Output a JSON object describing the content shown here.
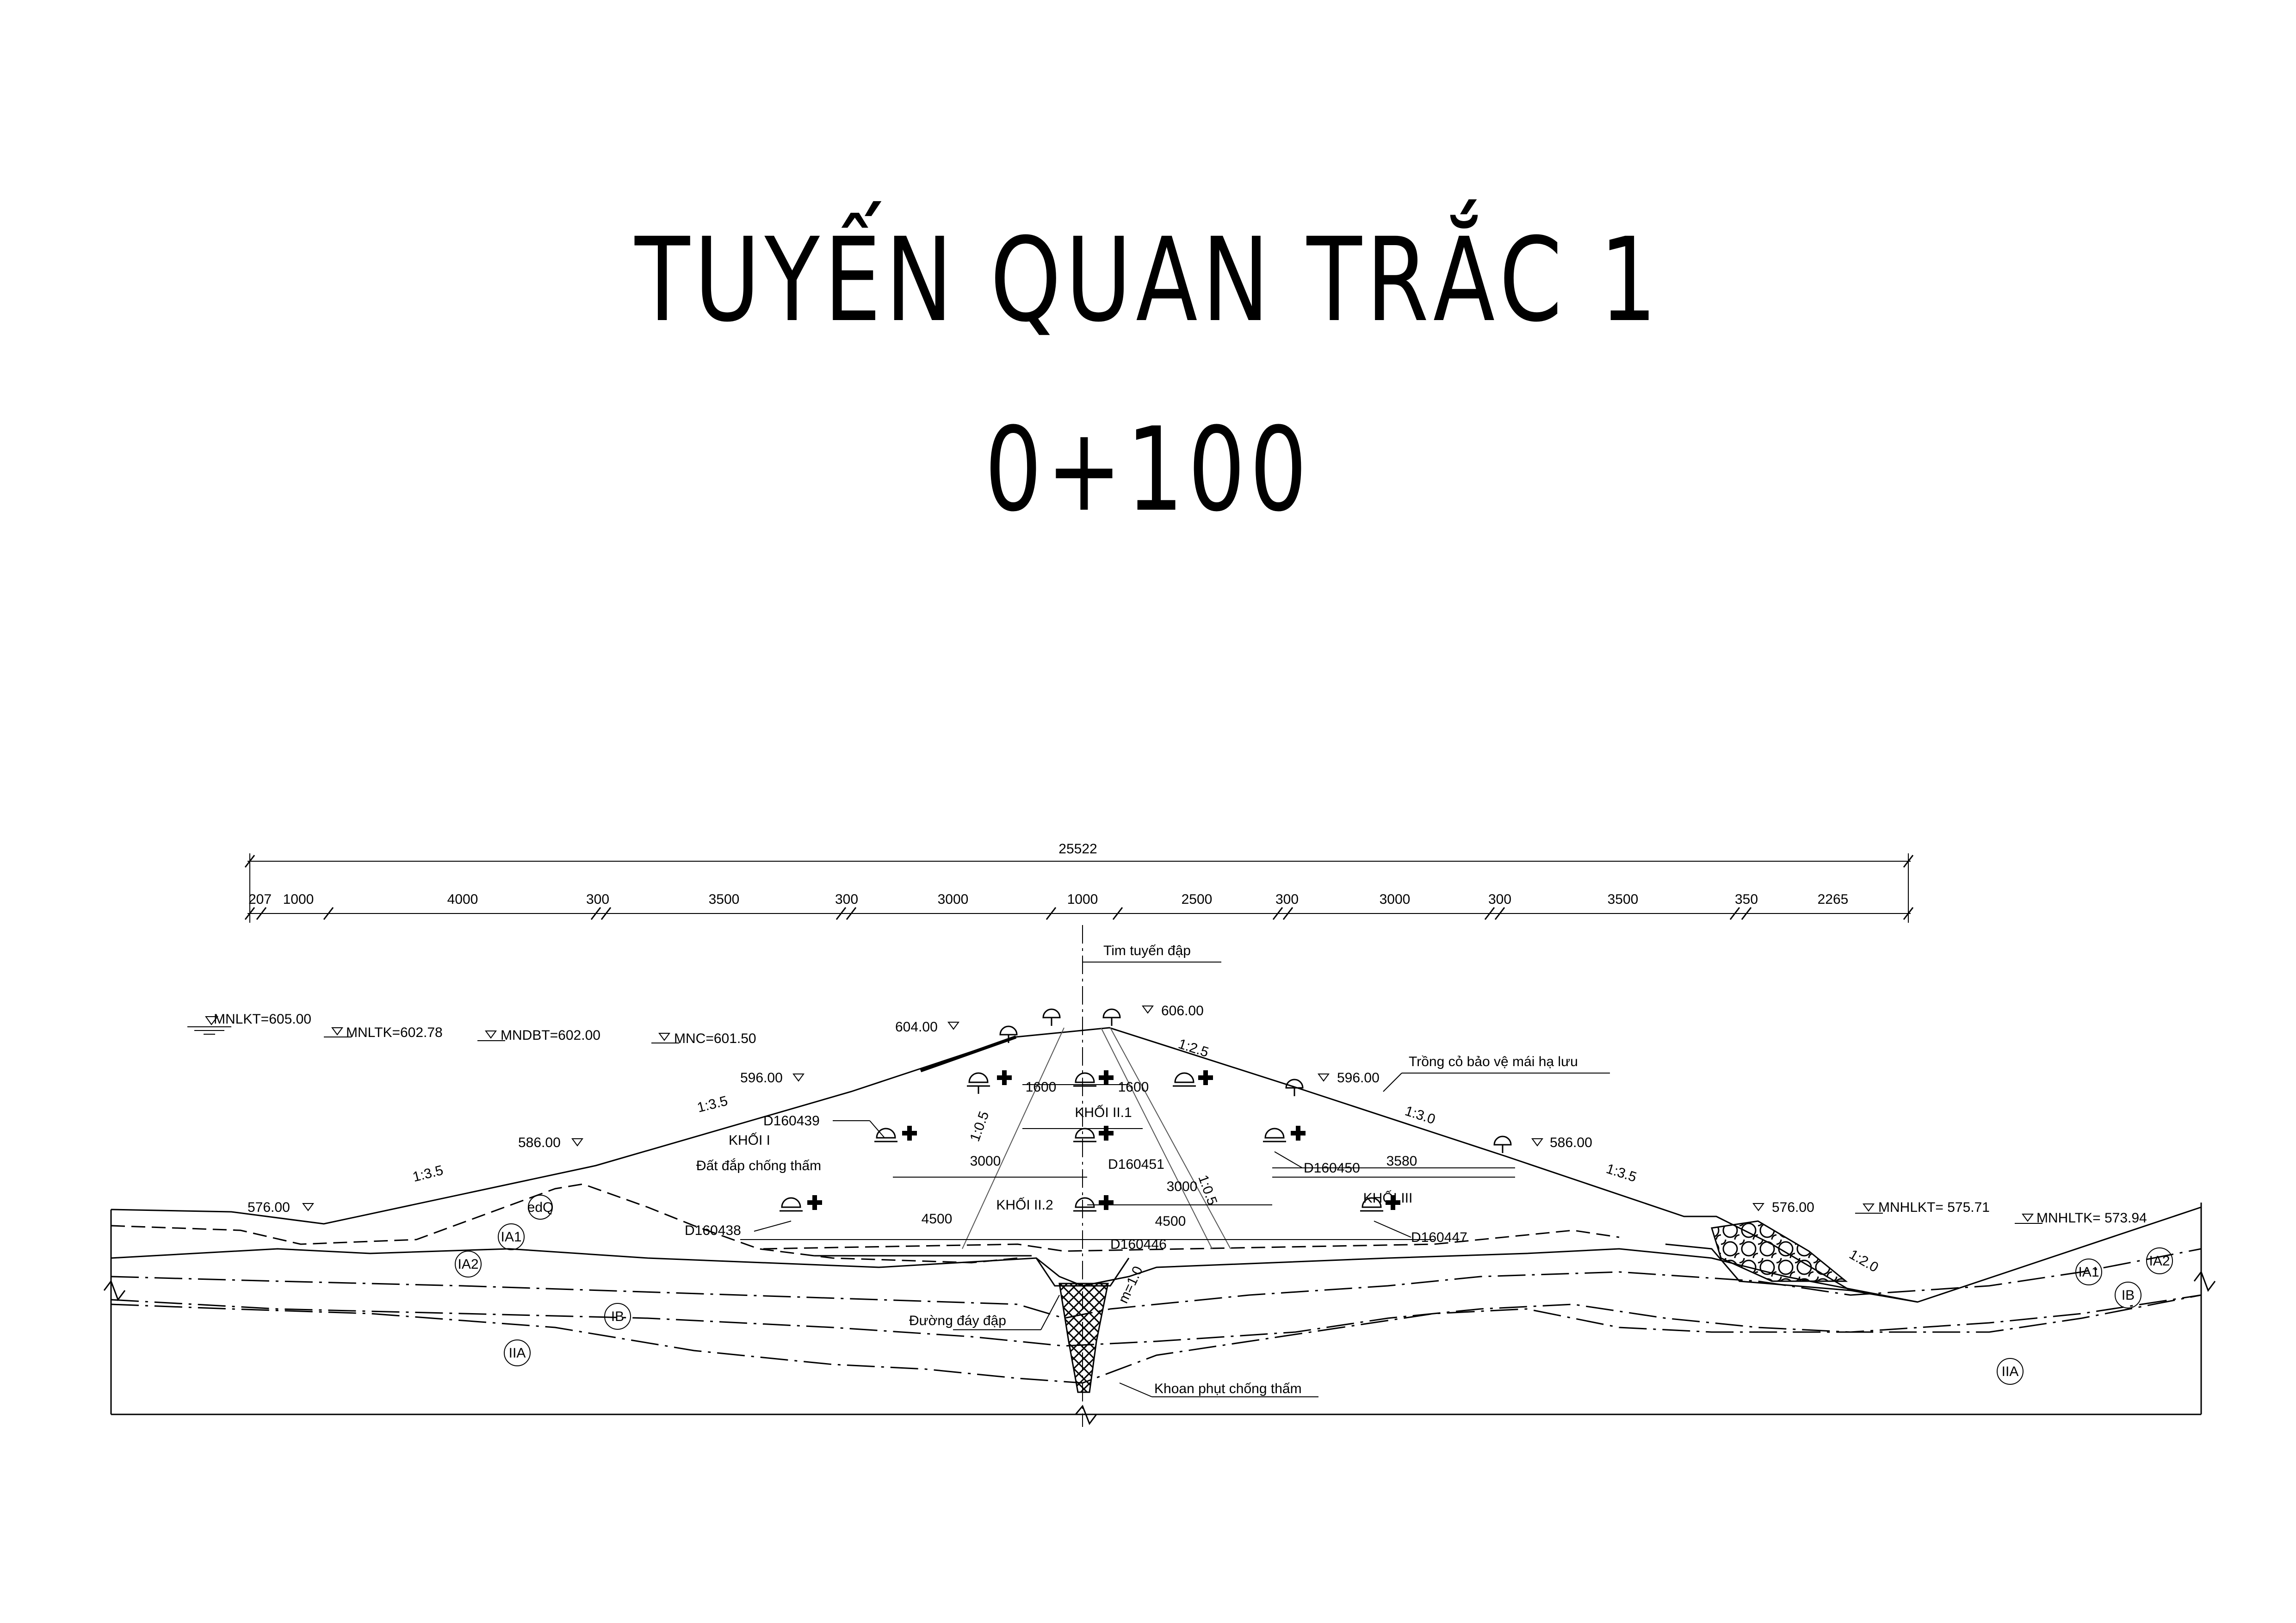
{
  "title": {
    "line1": "TUYẾN QUAN TRẮC 1",
    "line2": "0+100"
  },
  "dimensions": {
    "total": "25522",
    "segments": [
      "207",
      "1000",
      "4000",
      "300",
      "3500",
      "300",
      "3000",
      "1000",
      "2500",
      "300",
      "3000",
      "300",
      "3500",
      "350",
      "2265"
    ]
  },
  "water_levels": {
    "mnlkt": "MNLKT=605.00",
    "mnltk": "MNLTK=602.78",
    "mndbt": "MNDBT=602.00",
    "mnc": "MNC=601.50",
    "mnhlkt": "MNHLKT= 575.71",
    "mnhltk": "MNHLTK= 573.94"
  },
  "elevations": {
    "crest_left": "604.00",
    "crest_right": "606.00",
    "up_596": "596.00",
    "up_586": "586.00",
    "up_576": "576.00",
    "down_596": "596.00",
    "down_586": "586.00",
    "down_576": "576.00"
  },
  "slopes": {
    "up_upper": "1:3.5",
    "up_lower": "1:3.5",
    "down_crest": "1:2.5",
    "down_mid": "1:3.0",
    "down_lower": "1:3.5",
    "toe": "1:2.0",
    "core_left": "1:0.5",
    "core_right": "1:0.5",
    "m": "m=1.0"
  },
  "labels": {
    "axis": "Tim tuyến đập",
    "grass": "Trồng cỏ bảo vệ mái hạ lưu",
    "khoi1": "KHỐI I",
    "khoi1_sub": "Đất đắp chống thấm",
    "khoi2_1": "KHỐI II.1",
    "khoi2_2": "KHỐI II.2",
    "khoi3": "KHỐI III",
    "dam_base": "Đường đáy đập",
    "grout": "Khoan phụt chống thấm"
  },
  "internal_dims": {
    "d1600a": "1600",
    "d1600b": "1600",
    "d3000a": "3000",
    "d3000b": "3000",
    "d3580": "3580",
    "d4500a": "4500",
    "d4500b": "4500"
  },
  "instruments": {
    "d160439": "D160439",
    "d160438": "D160438",
    "d160451": "D160451",
    "d160446": "D160446",
    "d160450": "D160450",
    "d160447": "D160447"
  },
  "geology": {
    "edq": "edQ",
    "ia1": "IA1",
    "ia2": "IA2",
    "ib": "IB",
    "iia": "IIA",
    "ia1_r": "IA1",
    "ia2_r": "IA2",
    "ib_r": "IB",
    "iia_r": "IIA"
  }
}
